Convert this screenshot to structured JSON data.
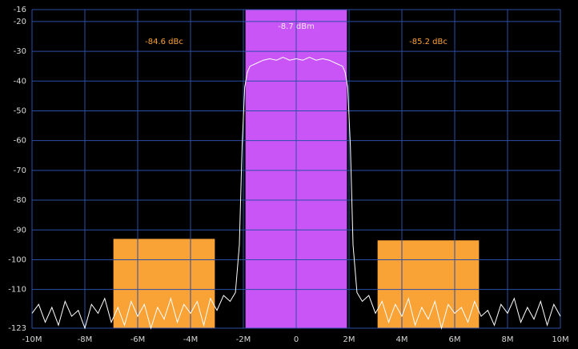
{
  "chart_data": {
    "type": "line",
    "xlim": [
      -10,
      10
    ],
    "xticks": [
      {
        "value": -10,
        "label": "-10M"
      },
      {
        "value": -8,
        "label": "-8M"
      },
      {
        "value": -6,
        "label": "-6M"
      },
      {
        "value": -4,
        "label": "-4M"
      },
      {
        "value": -2,
        "label": "-2M"
      },
      0,
      {
        "value": 2,
        "label": "2M"
      },
      {
        "value": 4,
        "label": "4M"
      },
      {
        "value": 6,
        "label": "6M"
      },
      {
        "value": 8,
        "label": "8M"
      },
      {
        "value": 10,
        "label": "10M"
      }
    ],
    "ylim": [
      -123,
      -16
    ],
    "yticks": [
      -16,
      -20,
      -30,
      -40,
      -50,
      -60,
      -70,
      -80,
      -90,
      -100,
      -110,
      -123
    ],
    "grid": true,
    "grid_color": "#2b4ea8",
    "regions": [
      {
        "x0": -6.92,
        "x1": -3.08,
        "top": -93,
        "color": "#f9a236",
        "label": "-84.6 dBc",
        "label_color": "#f9a236"
      },
      {
        "x0": -1.92,
        "x1": 1.92,
        "top": -16,
        "color": "#c955f7",
        "label": "-8.7 dBm",
        "label_color": "#f0e6ff"
      },
      {
        "x0": 3.08,
        "x1": 6.92,
        "top": -93.5,
        "color": "#f9a236",
        "label": "-85.2 dBc",
        "label_color": "#f9a236"
      }
    ],
    "series": [
      {
        "color": "#ffffff",
        "x": [
          -10,
          -9.75,
          -9.5,
          -9.25,
          -9,
          -8.75,
          -8.5,
          -8.25,
          -8,
          -7.75,
          -7.5,
          -7.25,
          -7,
          -6.75,
          -6.5,
          -6.25,
          -6,
          -5.75,
          -5.5,
          -5.25,
          -5,
          -4.75,
          -4.5,
          -4.25,
          -4,
          -3.75,
          -3.5,
          -3.25,
          -3,
          -2.75,
          -2.5,
          -2.3,
          -2.15,
          -2.05,
          -1.95,
          -1.85,
          -1.75,
          -1.5,
          -1.25,
          -1,
          -0.75,
          -0.5,
          -0.25,
          0,
          0.25,
          0.5,
          0.75,
          1,
          1.25,
          1.5,
          1.75,
          1.85,
          1.95,
          2.05,
          2.15,
          2.3,
          2.5,
          2.75,
          3,
          3.25,
          3.5,
          3.75,
          4,
          4.25,
          4.5,
          4.75,
          5,
          5.25,
          5.5,
          5.75,
          6,
          6.25,
          6.5,
          6.75,
          7,
          7.25,
          7.5,
          7.75,
          8,
          8.25,
          8.5,
          8.75,
          9,
          9.25,
          9.5,
          9.75,
          10
        ],
        "values": [
          -118,
          -115,
          -121,
          -116,
          -122,
          -114,
          -119,
          -117,
          -123,
          -115,
          -118,
          -113,
          -121,
          -116,
          -122,
          -114,
          -119,
          -115,
          -123,
          -116,
          -120,
          -113,
          -121,
          -115,
          -118,
          -114,
          -122,
          -113,
          -117,
          -112,
          -114,
          -111,
          -95,
          -62,
          -42,
          -37,
          -35,
          -34,
          -33,
          -32.5,
          -33,
          -32,
          -33,
          -32.5,
          -33,
          -32,
          -33,
          -32.5,
          -33,
          -34,
          -35,
          -37,
          -42,
          -62,
          -95,
          -111,
          -114,
          -112,
          -118,
          -114,
          -121,
          -115,
          -119,
          -113,
          -122,
          -116,
          -120,
          -114,
          -123,
          -115,
          -118,
          -116,
          -121,
          -114,
          -119,
          -117,
          -122,
          -115,
          -118,
          -113,
          -121,
          -116,
          -120,
          -114,
          -122,
          -115,
          -119
        ]
      }
    ]
  }
}
